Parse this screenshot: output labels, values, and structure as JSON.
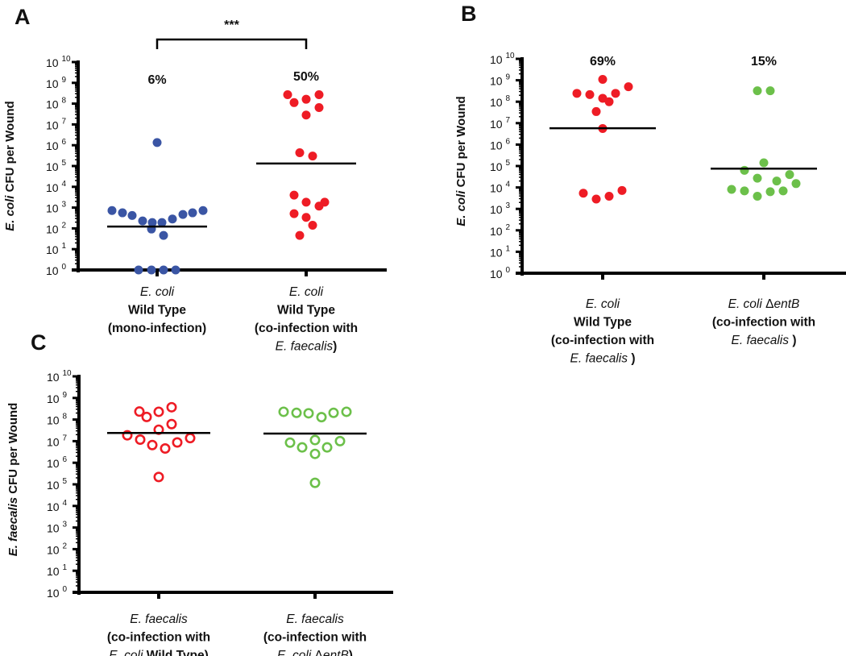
{
  "chart_data": [
    {
      "panel": "A",
      "type": "scatter",
      "yscale": "log10",
      "ylim_exponent": [
        0,
        10
      ],
      "ylabel": [
        {
          "text": "E. coli",
          "italic": true
        },
        {
          "text": " CFU per Wound",
          "italic": false
        }
      ],
      "tick_base": "10",
      "tick_exponents": [
        "0",
        "1",
        "2",
        "3",
        "4",
        "5",
        "6",
        "7",
        "8",
        "9",
        "10"
      ],
      "significance": "***",
      "groups": [
        {
          "name": "E. coli Wild Type (mono-infection)",
          "label_lines": [
            [
              {
                "text": "E. coli",
                "bold": false,
                "italic": true
              }
            ],
            [
              {
                "text": "Wild Type",
                "bold": true,
                "italic": false
              }
            ],
            [
              {
                "text": "(mono-infection)",
                "bold": true,
                "italic": false
              }
            ]
          ],
          "percent_label": "6%",
          "color": "#3a55a4",
          "marker": "filled",
          "log10_values": [
            2.86,
            2.75,
            2.62,
            2.36,
            2.28,
            2.28,
            2.45,
            2.67,
            2.75,
            2.86,
            1.97,
            1.66,
            6.13,
            0,
            0,
            0,
            0
          ],
          "median_log10": 2.09
        },
        {
          "name": "E. coli Wild Type (co-infection with E. faecalis)",
          "label_lines": [
            [
              {
                "text": "E. coli",
                "bold": false,
                "italic": true
              }
            ],
            [
              {
                "text": "Wild Type",
                "bold": true,
                "italic": false
              }
            ],
            [
              {
                "text": "(co-infection with",
                "bold": true,
                "italic": false
              }
            ],
            [
              {
                "text": "E. faecalis",
                "bold": false,
                "italic": true
              },
              {
                "text": ")",
                "bold": true,
                "italic": false
              }
            ]
          ],
          "percent_label": "50%",
          "color": "#ee1c25",
          "marker": "filled",
          "log10_values": [
            8.43,
            8.43,
            8.05,
            8.21,
            7.81,
            7.45,
            5.64,
            5.48,
            3.6,
            3.26,
            3.26,
            3.07,
            2.71,
            2.53,
            2.15,
            1.66
          ],
          "median_log10": 5.12
        }
      ]
    },
    {
      "panel": "B",
      "type": "scatter",
      "yscale": "log10",
      "ylim_exponent": [
        0,
        10
      ],
      "ylabel": [
        {
          "text": "E. coli",
          "italic": true
        },
        {
          "text": " CFU per Wound",
          "italic": false
        }
      ],
      "tick_base": "10",
      "tick_exponents": [
        "0",
        "1",
        "2",
        "3",
        "4",
        "5",
        "6",
        "7",
        "8",
        "9",
        "10"
      ],
      "groups": [
        {
          "name": "E. coli Wild Type (co-infection with E. faecalis)",
          "label_lines": [
            [
              {
                "text": "E. coli",
                "bold": false,
                "italic": true
              }
            ],
            [
              {
                "text": "Wild Type",
                "bold": true,
                "italic": false
              }
            ],
            [
              {
                "text": "(co-infection with",
                "bold": true,
                "italic": false
              }
            ],
            [
              {
                "text": "E. faecalis",
                "bold": false,
                "italic": true
              },
              {
                "text": " )",
                "bold": true,
                "italic": false
              }
            ]
          ],
          "percent_label": "69%",
          "color": "#ee1c25",
          "marker": "filled",
          "log10_values": [
            9.04,
            8.39,
            8.33,
            8.16,
            8.0,
            8.39,
            8.7,
            7.54,
            6.75,
            3.73,
            3.46,
            3.59,
            3.86
          ],
          "median_log10": 6.76
        },
        {
          "name": "E. coli ΔentB (co-infection with E. faecalis)",
          "label_lines": [
            [
              {
                "text": "E. coli ",
                "bold": false,
                "italic": true
              },
              {
                "text": "Δ",
                "bold": false,
                "italic": false
              },
              {
                "text": "entB",
                "bold": false,
                "italic": true
              }
            ],
            [
              {
                "text": "(co-infection with",
                "bold": true,
                "italic": false
              }
            ],
            [
              {
                "text": "E. faecalis",
                "bold": false,
                "italic": true
              },
              {
                "text": " )",
                "bold": true,
                "italic": false
              }
            ]
          ],
          "percent_label": "15%",
          "color": "#6cc04a",
          "marker": "filled",
          "log10_values": [
            8.51,
            8.51,
            5.15,
            4.8,
            4.43,
            4.3,
            4.6,
            4.18,
            3.91,
            3.84,
            3.59,
            3.8,
            3.84
          ],
          "median_log10": 4.88
        }
      ]
    },
    {
      "panel": "C",
      "type": "scatter",
      "yscale": "log10",
      "ylim_exponent": [
        0,
        10
      ],
      "ylabel": [
        {
          "text": "E. faecalis",
          "italic": true
        },
        {
          "text": " CFU per Wound",
          "italic": false
        }
      ],
      "tick_base": "10",
      "tick_exponents": [
        "0",
        "1",
        "2",
        "3",
        "4",
        "5",
        "6",
        "7",
        "8",
        "9",
        "10"
      ],
      "groups": [
        {
          "name": "E. faecalis (co-infection with E. coli Wild Type)",
          "label_lines": [
            [
              {
                "text": "E. faecalis",
                "bold": false,
                "italic": true
              }
            ],
            [
              {
                "text": "(co-infection with",
                "bold": true,
                "italic": false
              }
            ],
            [
              {
                "text": "E. coli",
                "bold": false,
                "italic": true
              },
              {
                "text": " Wild Type)",
                "bold": true,
                "italic": false
              }
            ]
          ],
          "percent_label": "",
          "color": "#ee1c25",
          "marker": "open",
          "log10_values": [
            8.37,
            8.12,
            8.36,
            8.57,
            7.79,
            7.53,
            7.27,
            7.07,
            6.82,
            6.66,
            6.94,
            7.14,
            5.34
          ],
          "median_log10": 7.38
        },
        {
          "name": "E. faecalis (co-infection with E. coli ΔentB)",
          "label_lines": [
            [
              {
                "text": "E. faecalis",
                "bold": false,
                "italic": true
              }
            ],
            [
              {
                "text": "(co-infection with",
                "bold": true,
                "italic": false
              }
            ],
            [
              {
                "text": "E. coli ",
                "bold": false,
                "italic": true
              },
              {
                "text": "Δ",
                "bold": false,
                "italic": false
              },
              {
                "text": "entB",
                "bold": false,
                "italic": true
              },
              {
                "text": ")",
                "bold": true,
                "italic": false
              }
            ]
          ],
          "percent_label": "",
          "color": "#6cc04a",
          "marker": "open",
          "log10_values": [
            8.36,
            8.31,
            8.29,
            8.11,
            8.31,
            8.36,
            6.93,
            6.71,
            7.05,
            6.71,
            7.0,
            6.41,
            5.07
          ],
          "median_log10": 7.35
        }
      ]
    }
  ]
}
